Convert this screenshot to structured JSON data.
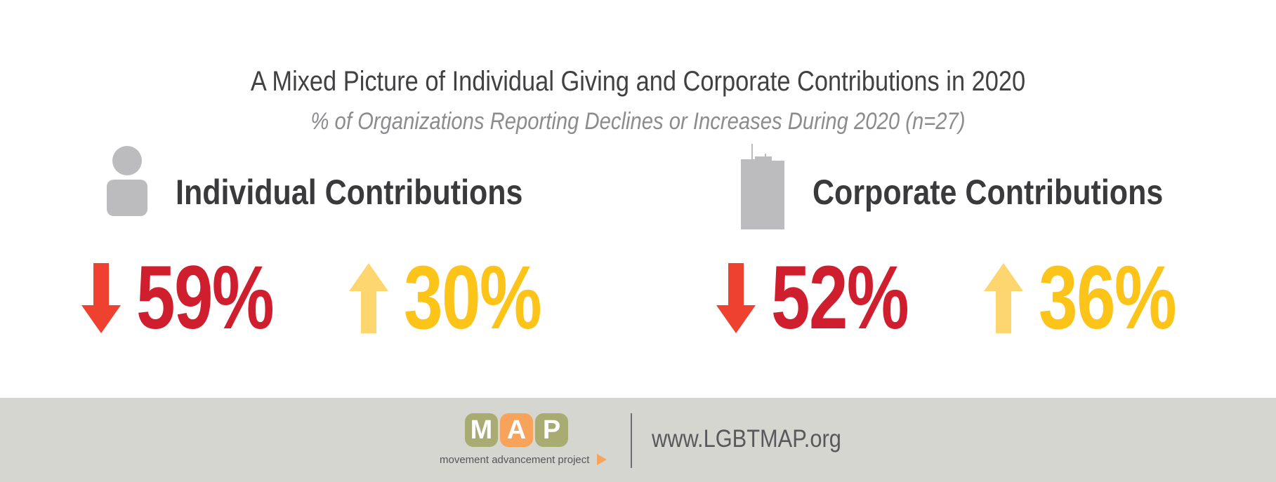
{
  "header": {
    "title": "A Mixed Picture of Individual Giving and Corporate Contributions in 2020",
    "subtitle": "% of Organizations Reporting Declines or Increases During 2020 (n=27)"
  },
  "sections": [
    {
      "heading": "Individual Contributions",
      "icon": "person-icon",
      "decline": {
        "label": "59%",
        "value": 59,
        "icon": "down-arrow-icon",
        "color": "#cf1f2e",
        "arrow_color": "#ee4130"
      },
      "increase": {
        "label": "30%",
        "value": 30,
        "icon": "up-arrow-icon",
        "color": "#fcc318",
        "arrow_color": "#fed66f"
      }
    },
    {
      "heading": "Corporate Contributions",
      "icon": "building-icon",
      "decline": {
        "label": "52%",
        "value": 52,
        "icon": "down-arrow-icon",
        "color": "#cf1f2e",
        "arrow_color": "#ee4130"
      },
      "increase": {
        "label": "36%",
        "value": 36,
        "icon": "up-arrow-icon",
        "color": "#fcc318",
        "arrow_color": "#fed66f"
      }
    }
  ],
  "footer": {
    "logo": {
      "letters": [
        "M",
        "A",
        "P"
      ],
      "tile_colors": [
        "#a8ab72",
        "#f7a35c",
        "#a8ab72"
      ],
      "tagline": "movement advancement project"
    },
    "website": "www.LGBTMAP.org"
  },
  "colors": {
    "gray_icon": "#bcbcbe",
    "footer_bg": "#d6d6d0"
  }
}
